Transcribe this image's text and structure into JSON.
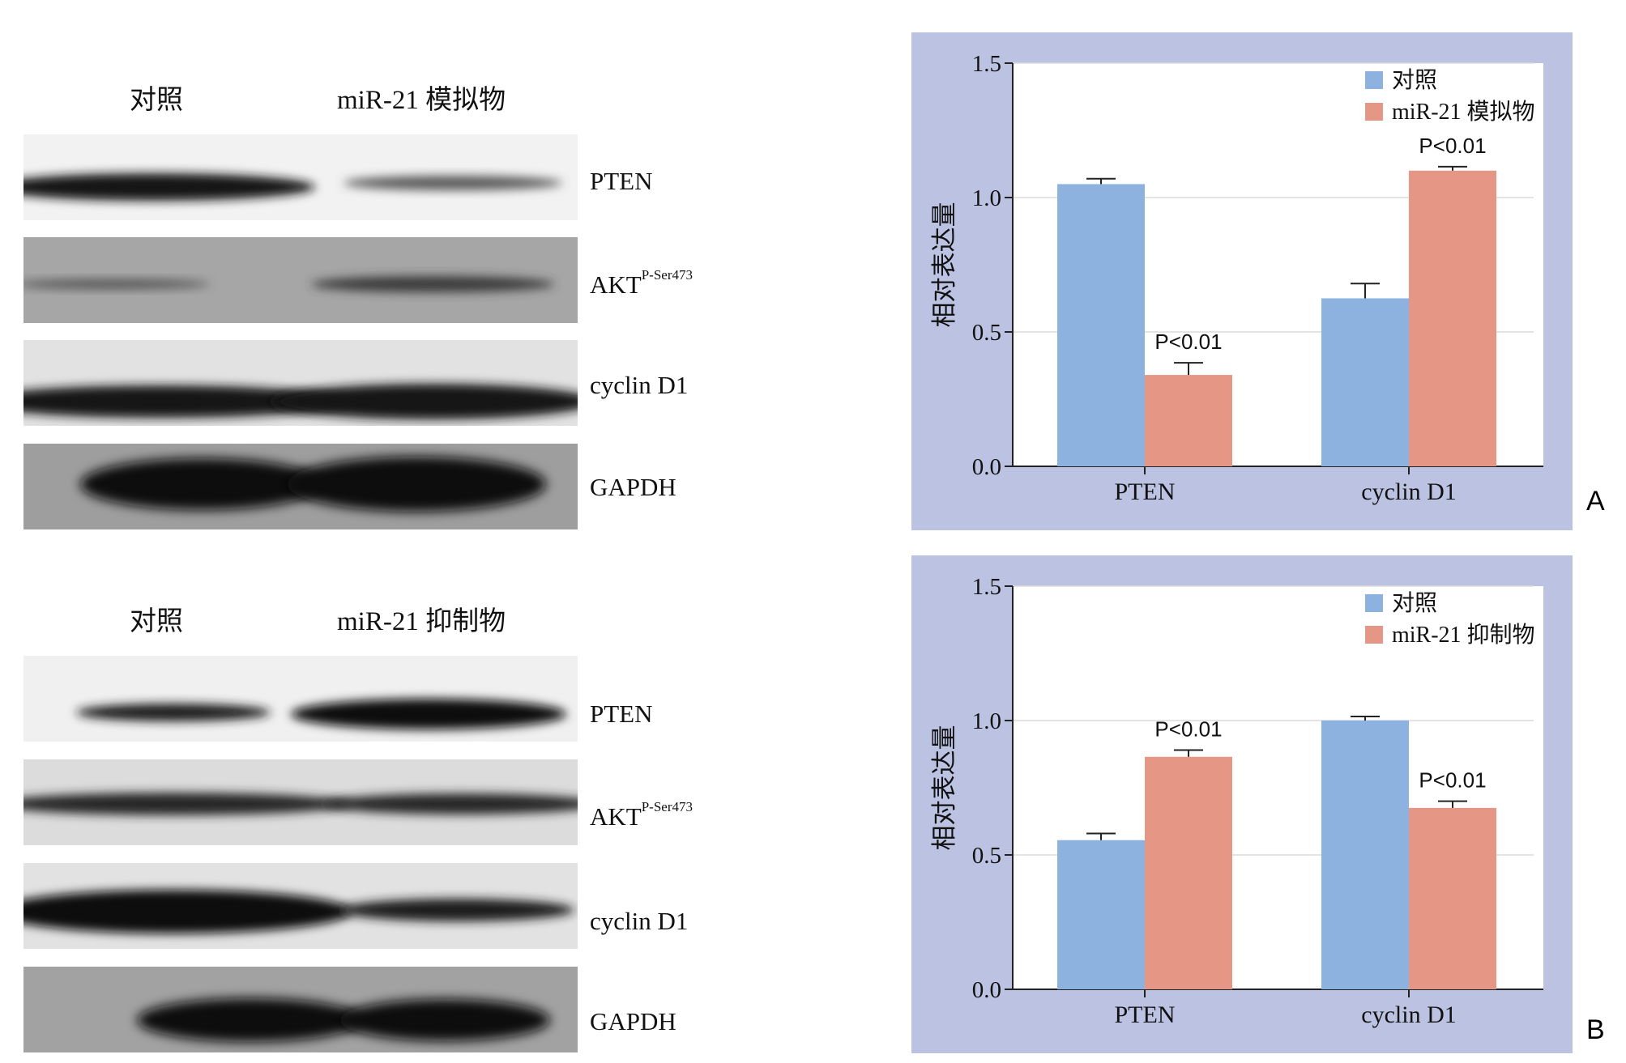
{
  "blots": [
    {
      "columns": [
        "对照",
        "miR-21 模拟物"
      ],
      "rows": [
        {
          "label": "PTEN",
          "sup": ""
        },
        {
          "label": "AKT",
          "sup": "P-Ser473"
        },
        {
          "label": "cyclin D1",
          "sup": ""
        },
        {
          "label": "GAPDH",
          "sup": ""
        }
      ]
    },
    {
      "columns": [
        "对照",
        "miR-21 抑制物"
      ],
      "rows": [
        {
          "label": "PTEN",
          "sup": ""
        },
        {
          "label": "AKT",
          "sup": "P-Ser473"
        },
        {
          "label": "cyclin D1",
          "sup": ""
        },
        {
          "label": "GAPDH",
          "sup": ""
        }
      ]
    }
  ],
  "chart_data": [
    {
      "type": "bar",
      "panel_letter": "A",
      "categories": [
        "PTEN",
        "cyclin D1"
      ],
      "ylabel": "相对表达量",
      "ylim": [
        0,
        1.5
      ],
      "yticks": [
        "0.0",
        "0.5",
        "1.0",
        "1.5"
      ],
      "grid": true,
      "legend_position": "top-right",
      "series": [
        {
          "name": "对照",
          "color": "#8db2e0",
          "values": [
            1.05,
            0.625
          ],
          "errors": [
            0.02,
            0.055
          ]
        },
        {
          "name": "miR-21 模拟物",
          "color": "#e69684",
          "values": [
            0.34,
            1.1
          ],
          "errors": [
            0.045,
            0.015
          ]
        }
      ],
      "annotations": [
        {
          "series": 1,
          "category": 0,
          "text": "P<0.01"
        },
        {
          "series": 1,
          "category": 1,
          "text": "P<0.01"
        }
      ]
    },
    {
      "type": "bar",
      "panel_letter": "B",
      "categories": [
        "PTEN",
        "cyclin D1"
      ],
      "ylabel": "相对表达量",
      "ylim": [
        0,
        1.5
      ],
      "yticks": [
        "0.0",
        "0.5",
        "1.0",
        "1.5"
      ],
      "grid": true,
      "legend_position": "top-right",
      "series": [
        {
          "name": "对照",
          "color": "#8db2e0",
          "values": [
            0.555,
            1.0
          ],
          "errors": [
            0.025,
            0.015
          ]
        },
        {
          "name": "miR-21 抑制物",
          "color": "#e69684",
          "values": [
            0.865,
            0.675
          ],
          "errors": [
            0.025,
            0.025
          ]
        }
      ],
      "annotations": [
        {
          "series": 1,
          "category": 0,
          "text": "P<0.01"
        },
        {
          "series": 1,
          "category": 1,
          "text": "P<0.01"
        }
      ]
    }
  ]
}
